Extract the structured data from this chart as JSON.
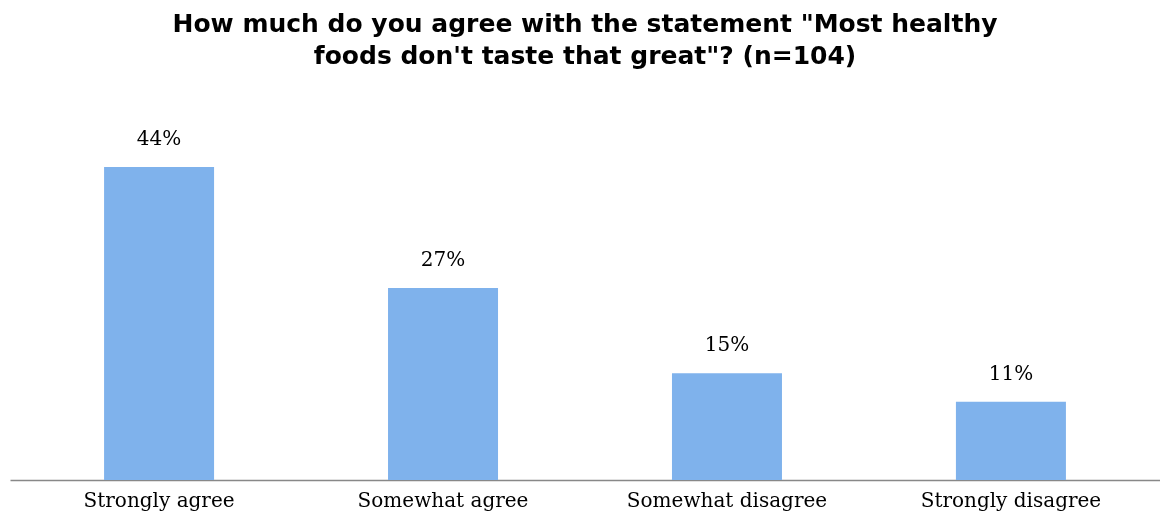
{
  "chart_data": {
    "type": "bar",
    "title": "How much do you agree with the statement \"Most healthy foods don't taste that great\"? (n=104)",
    "categories": [
      "Strongly agree",
      "Somewhat agree",
      "Somewhat disagree",
      "Strongly disagree"
    ],
    "values": [
      44,
      27,
      15,
      11
    ],
    "value_labels": [
      "44%",
      "27%",
      "15%",
      "11%"
    ],
    "color": "#7fb2ec"
  }
}
